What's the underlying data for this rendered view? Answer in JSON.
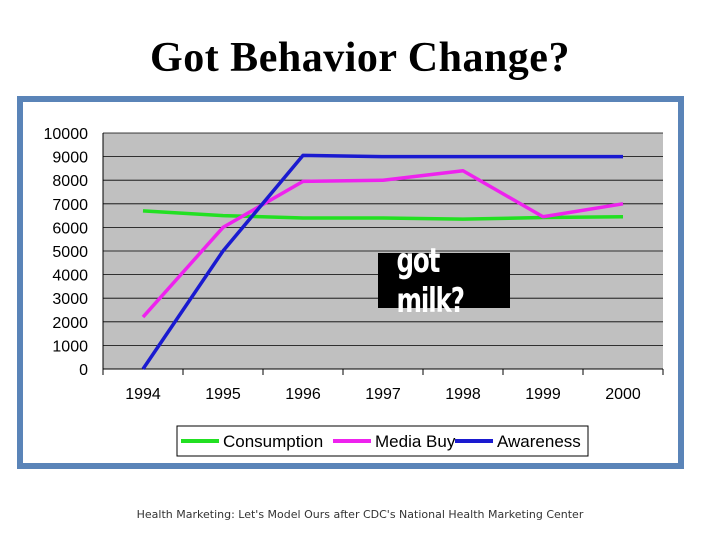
{
  "slide": {
    "title": "Got Behavior Change?",
    "footer": "Health Marketing: Let's Model Ours after CDC's National Health Marketing Center",
    "logo_text": "got milk?"
  },
  "colors": {
    "frame": "#5a84b8",
    "plot_bg": "#c0c0c0",
    "consumption": "#22e022",
    "media_buy": "#ee22ee",
    "awareness": "#1a1ad0"
  },
  "chart_data": {
    "type": "line",
    "title": "",
    "xlabel": "",
    "ylabel": "",
    "categories": [
      "1994",
      "1995",
      "1996",
      "1997",
      "1998",
      "1999",
      "2000"
    ],
    "yticks": [
      "0",
      "1000",
      "2000",
      "3000",
      "4000",
      "5000",
      "6000",
      "7000",
      "8000",
      "9000",
      "10000"
    ],
    "ylim": [
      0,
      10000
    ],
    "grid": "horizontal",
    "legend": "bottom",
    "series": [
      {
        "name": "Consumption",
        "color": "#22e022",
        "values": [
          6700,
          6500,
          6400,
          6400,
          6350,
          6420,
          6450
        ]
      },
      {
        "name": "Media Buy",
        "color": "#ee22ee",
        "values": [
          2200,
          6000,
          7950,
          8000,
          8400,
          6450,
          7000
        ]
      },
      {
        "name": "Awareness",
        "color": "#1a1ad0",
        "values": [
          0,
          5000,
          9050,
          9000,
          9000,
          9000,
          9000
        ]
      }
    ]
  }
}
